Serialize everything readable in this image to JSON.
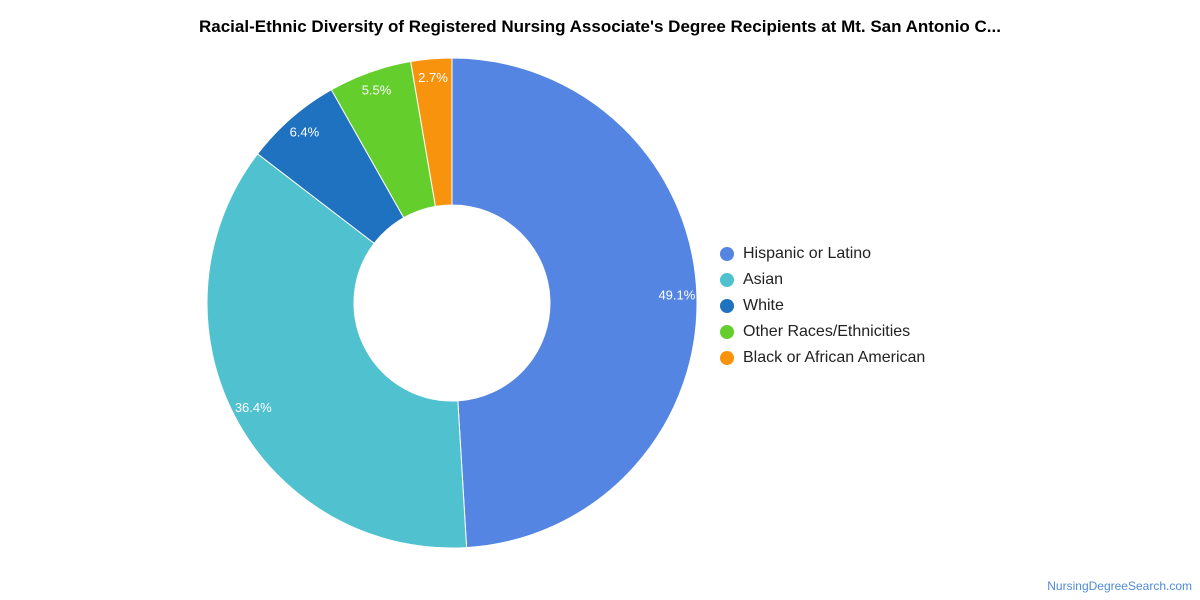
{
  "chart_data": {
    "type": "pie",
    "title": "Racial-Ethnic Diversity of Registered Nursing Associate's Degree Recipients at Mt. San Antonio C...",
    "donut": true,
    "legend_position": "right",
    "categories": [
      "Hispanic or Latino",
      "Asian",
      "White",
      "Other Races/Ethnicities",
      "Black or African American"
    ],
    "values": [
      49.1,
      36.4,
      6.4,
      5.5,
      2.7
    ],
    "labels": [
      "49.1%",
      "36.4%",
      "6.4%",
      "5.5%",
      "2.7%"
    ],
    "colors": [
      "#5485e2",
      "#50c1cf",
      "#1f72bf",
      "#64cf2c",
      "#f8930e"
    ]
  },
  "source": "NursingDegreeSearch.com"
}
